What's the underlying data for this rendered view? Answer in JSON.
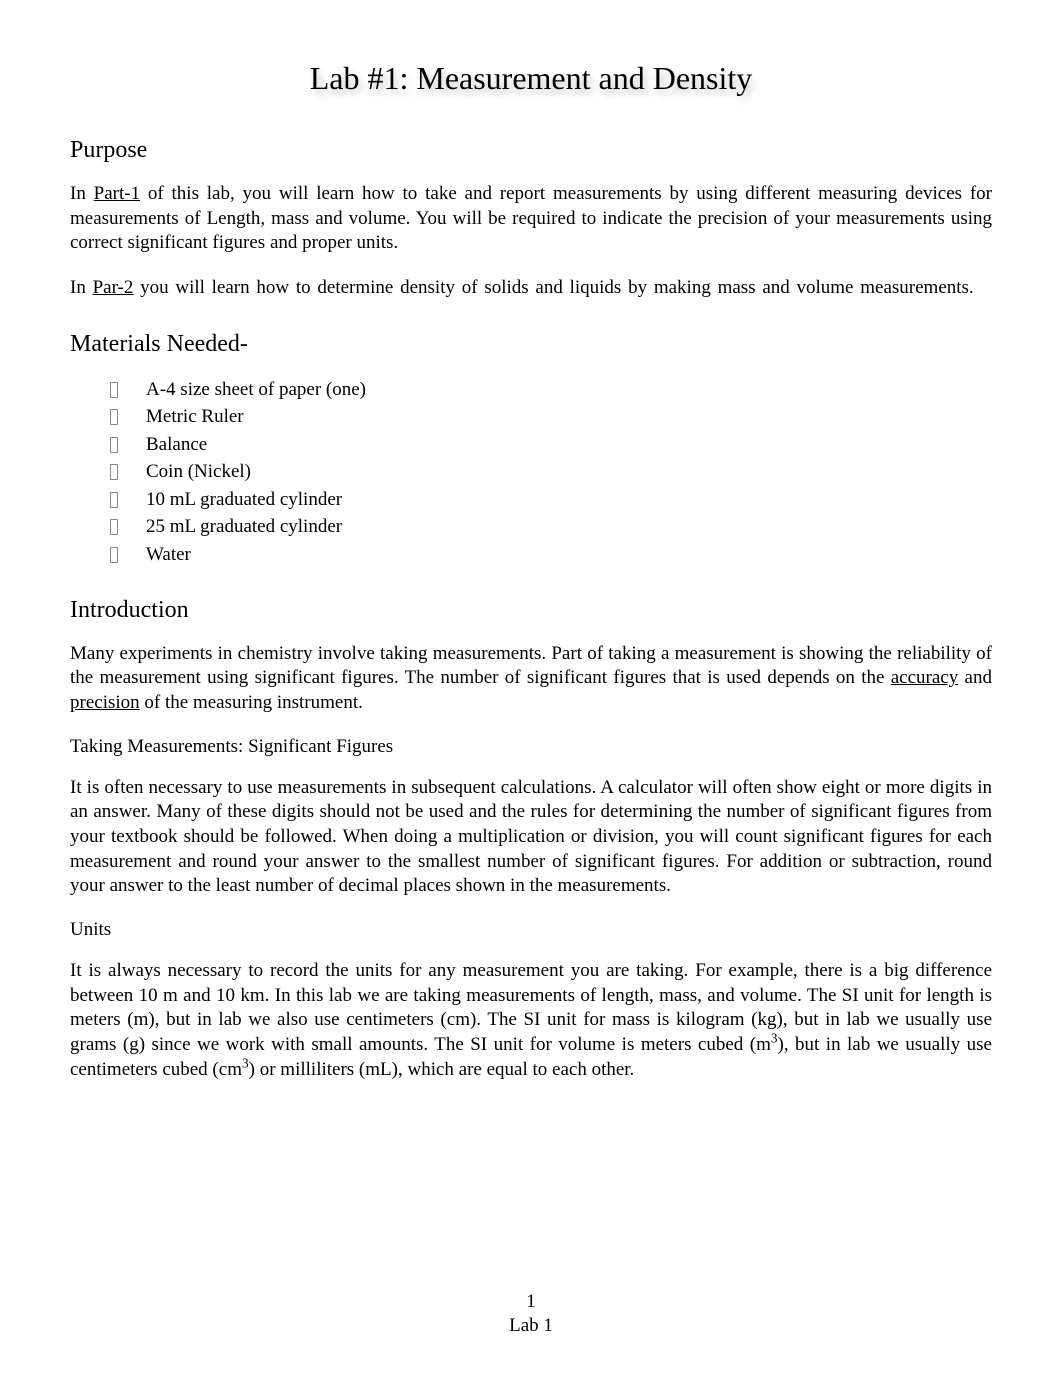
{
  "document": {
    "title": "Lab #1: Measurement and Density",
    "pageNumber": "1",
    "footerLabel": "Lab 1",
    "colors": {
      "background": "#ffffff",
      "text": "#000000",
      "titleShadow": "rgba(0,0,0,0.25)"
    },
    "typography": {
      "family": "Times New Roman",
      "title_fontsize": 32,
      "heading_fontsize": 24,
      "body_fontsize": 19
    },
    "sections": {
      "purpose": {
        "heading": "Purpose",
        "para1_html": "In <u>Part-1</u>  of this lab, you will learn how to take and report measurements by using different measuring devices for measurements of Length, mass and volume. You will be required to indicate the precision of your measurements using correct significant figures and proper units.",
        "para2_html": "In <u>Par-2</u> you will learn how to determine density of solids and liquids by making mass and volume measurements."
      },
      "materials": {
        "heading": "Materials Needed-",
        "items": [
          "A-4 size sheet of paper (one)",
          "Metric Ruler",
          "Balance",
          "Coin (Nickel)",
          "10 mL graduated cylinder",
          "25 mL graduated cylinder",
          "Water"
        ]
      },
      "introduction": {
        "heading": "Introduction",
        "para1_html": "Many experiments in chemistry involve taking measurements. Part of taking a measurement is showing the reliability of the measurement using significant figures. The number of significant figures that is used depends on the <u>accuracy</u> and <u>precision</u> of the measuring instrument.",
        "sigfig_heading": "Taking Measurements: Significant Figures",
        "sigfig_para": "It is often necessary to use measurements in subsequent calculations. A calculator will often show eight or more digits in an answer. Many of these digits should not be used and the rules for determining the number of significant figures from your textbook should be followed. When doing a multiplication or division, you will count significant figures for each measurement and round your answer to the smallest number of significant figures. For addition or subtraction, round your answer to the least number of decimal places shown in the measurements.",
        "units_heading": "Units",
        "units_para_html": "It is always necessary to record the units for any measurement you are taking. For example, there is a big difference between 10 m and 10 km. In this lab we are taking measurements of length, mass, and volume. The SI unit for length is meters (m), but in lab we also use centimeters (cm). The SI unit for mass is kilogram (kg), but in lab we usually use grams (g) since we work with small amounts. The SI unit for volume is meters cubed (m<sup>3</sup>), but in lab we usually use centimeters cubed (cm<sup>3</sup>) or milliliters (mL), which are equal to each other."
      }
    }
  }
}
